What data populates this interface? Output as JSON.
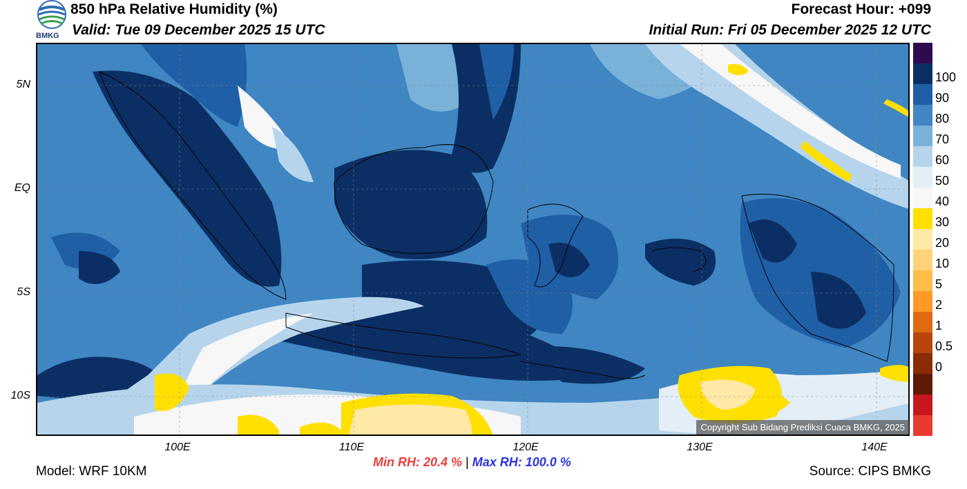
{
  "header": {
    "title": "850 hPa Relative Humidity (%)",
    "valid": "Valid: Tue 09 December 2025 15 UTC",
    "forecast_hour": "Forecast Hour: +099",
    "initial_run": "Initial Run: Fri 05 December 2025 12 UTC",
    "logo_text": "BMKG"
  },
  "map": {
    "lat_labels": [
      "5N",
      "EQ",
      "5S",
      "10S"
    ],
    "lon_labels": [
      "100E",
      "110E",
      "120E",
      "130E",
      "140E"
    ],
    "copyright": "Copyright Sub Bidang Prediksi Cuaca BMKG, 2025"
  },
  "colorbar": {
    "labels": [
      "100",
      "90",
      "80",
      "70",
      "60",
      "50",
      "40",
      "30",
      "20",
      "10",
      "5",
      "2",
      "1",
      "0.5",
      "0"
    ],
    "colors": [
      "#2e0b4f",
      "#0b2f64",
      "#1f5fa6",
      "#3f86c2",
      "#79b1d9",
      "#b6d5ec",
      "#e4eef6",
      "#f7f7f7",
      "#ffe000",
      "#ffe9a6",
      "#ffd37a",
      "#ffbd4a",
      "#ff9a26",
      "#e06a10",
      "#b8450a",
      "#8a2d05",
      "#5e1a03",
      "#c8161d",
      "#e83a2e"
    ]
  },
  "footer": {
    "model": "Model: WRF 10KM",
    "source": "Source: CIPS BMKG",
    "min_rh": "Min RH:  20.4 %",
    "separator": "|",
    "max_rh": "Max RH: 100.0 %"
  }
}
